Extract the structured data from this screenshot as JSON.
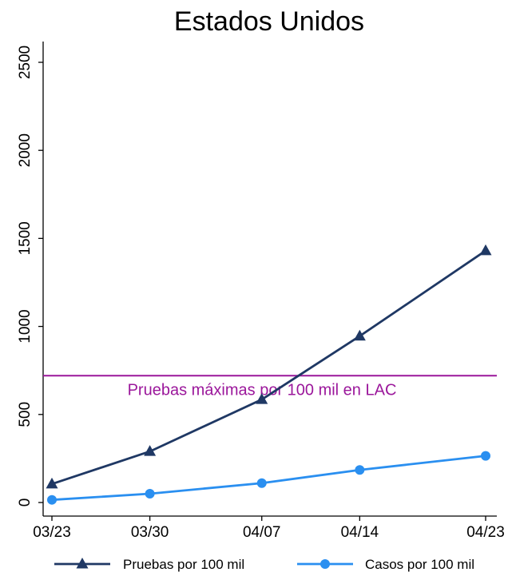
{
  "chart_data": {
    "type": "line",
    "title": "Estados Unidos",
    "xlabel": "",
    "ylabel": "",
    "categories": [
      "03/23",
      "03/30",
      "04/07",
      "04/14",
      "04/23"
    ],
    "x_days": [
      0,
      7,
      15,
      22,
      31
    ],
    "ylim": [
      0,
      2500
    ],
    "yticks": [
      0,
      500,
      1000,
      1500,
      2000,
      2500
    ],
    "grid": false,
    "series": [
      {
        "name": "Pruebas por 100 mil",
        "color": "#1f3864",
        "marker": "triangle",
        "values": [
          105,
          290,
          585,
          945,
          1430
        ]
      },
      {
        "name": "Casos por 100 mil",
        "color": "#2a8ff0",
        "marker": "circle",
        "values": [
          15,
          50,
          110,
          185,
          265
        ]
      }
    ],
    "reference_line": {
      "value": 720,
      "label": "Pruebas máximas por 100 mil en LAC",
      "color": "#9b179b"
    },
    "legend_position": "bottom"
  }
}
